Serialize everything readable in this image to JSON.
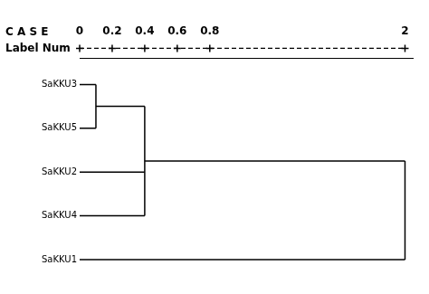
{
  "chart_data": {
    "type": "dendrogram",
    "categories": [
      "SaKKU3",
      "SaKKU5",
      "SaKKU2",
      "SaKKU4",
      "SaKKU1"
    ],
    "merges": [
      {
        "join": [
          "SaKKU3",
          "SaKKU5"
        ],
        "height": 0.1
      },
      {
        "join": [
          "SaKKU3",
          "SaKKU5",
          "SaKKU2",
          "SaKKU4"
        ],
        "height": 0.4
      },
      {
        "join": [
          "SaKKU3",
          "SaKKU5",
          "SaKKU2",
          "SaKKU4",
          "SaKKU1"
        ],
        "height": 2
      }
    ],
    "xlim": [
      0,
      2.05
    ],
    "xticks": [
      0,
      0.2,
      0.4,
      0.6,
      0.8,
      2
    ],
    "color": "#000000",
    "annotations": [
      "C A S E",
      "Label Num"
    ],
    "grid": false
  }
}
